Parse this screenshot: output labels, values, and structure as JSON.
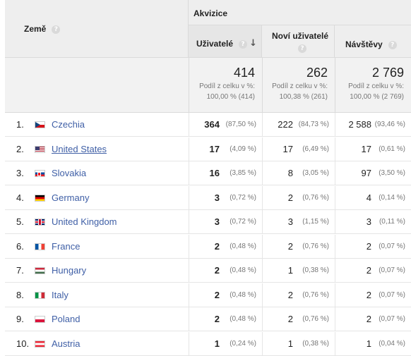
{
  "header": {
    "country_label": "Země",
    "help_glyph": "?",
    "acquisition_label": "Akvizice",
    "col_users": "Uživatelé",
    "col_new_users": "Noví uživatelé",
    "col_sessions": "Návštěvy",
    "sort_glyph": "↓"
  },
  "totals": {
    "users": {
      "value": "414",
      "line1": "Podíl z celku v %:",
      "line2": "100,00 % (414)"
    },
    "new_users": {
      "value": "262",
      "line1": "Podíl z celku v %:",
      "line2": "100,38 % (261)"
    },
    "sessions": {
      "value": "2 769",
      "line1": "Podíl z celku v %:",
      "line2": "100,00 % (2 769)"
    }
  },
  "rows": [
    {
      "num": "1.",
      "flag": "cz",
      "country": "Czechia",
      "link": false,
      "users": "364",
      "users_pct": "(87,50 %)",
      "new_users": "222",
      "new_users_pct": "(84,73 %)",
      "sessions": "2 588",
      "sessions_pct": "(93,46 %)"
    },
    {
      "num": "2.",
      "flag": "us",
      "country": "United States",
      "link": true,
      "users": "17",
      "users_pct": "(4,09 %)",
      "new_users": "17",
      "new_users_pct": "(6,49 %)",
      "sessions": "17",
      "sessions_pct": "(0,61 %)"
    },
    {
      "num": "3.",
      "flag": "sk",
      "country": "Slovakia",
      "link": false,
      "users": "16",
      "users_pct": "(3,85 %)",
      "new_users": "8",
      "new_users_pct": "(3,05 %)",
      "sessions": "97",
      "sessions_pct": "(3,50 %)"
    },
    {
      "num": "4.",
      "flag": "de",
      "country": "Germany",
      "link": false,
      "users": "3",
      "users_pct": "(0,72 %)",
      "new_users": "2",
      "new_users_pct": "(0,76 %)",
      "sessions": "4",
      "sessions_pct": "(0,14 %)"
    },
    {
      "num": "5.",
      "flag": "gb",
      "country": "United Kingdom",
      "link": false,
      "users": "3",
      "users_pct": "(0,72 %)",
      "new_users": "3",
      "new_users_pct": "(1,15 %)",
      "sessions": "3",
      "sessions_pct": "(0,11 %)"
    },
    {
      "num": "6.",
      "flag": "fr",
      "country": "France",
      "link": false,
      "users": "2",
      "users_pct": "(0,48 %)",
      "new_users": "2",
      "new_users_pct": "(0,76 %)",
      "sessions": "2",
      "sessions_pct": "(0,07 %)"
    },
    {
      "num": "7.",
      "flag": "hu",
      "country": "Hungary",
      "link": false,
      "users": "2",
      "users_pct": "(0,48 %)",
      "new_users": "1",
      "new_users_pct": "(0,38 %)",
      "sessions": "2",
      "sessions_pct": "(0,07 %)"
    },
    {
      "num": "8.",
      "flag": "it",
      "country": "Italy",
      "link": false,
      "users": "2",
      "users_pct": "(0,48 %)",
      "new_users": "2",
      "new_users_pct": "(0,76 %)",
      "sessions": "2",
      "sessions_pct": "(0,07 %)"
    },
    {
      "num": "9.",
      "flag": "pl",
      "country": "Poland",
      "link": false,
      "users": "2",
      "users_pct": "(0,48 %)",
      "new_users": "2",
      "new_users_pct": "(0,76 %)",
      "sessions": "2",
      "sessions_pct": "(0,07 %)"
    },
    {
      "num": "10.",
      "flag": "at",
      "country": "Austria",
      "link": false,
      "users": "1",
      "users_pct": "(0,24 %)",
      "new_users": "1",
      "new_users_pct": "(0,38 %)",
      "sessions": "1",
      "sessions_pct": "(0,04 %)"
    }
  ]
}
